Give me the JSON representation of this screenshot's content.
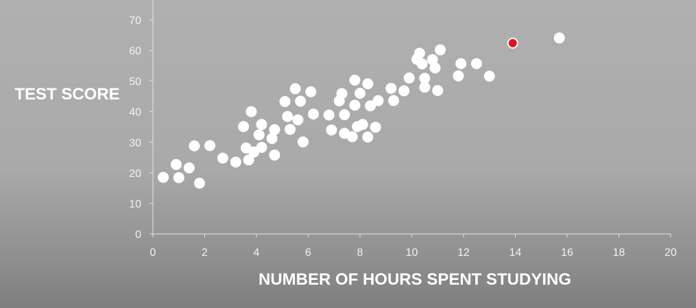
{
  "chart_data": {
    "type": "scatter",
    "title": "",
    "xlabel": "NUMBER OF HOURS SPENT STUDYING",
    "ylabel": "TEST SCORE",
    "xlim": [
      0,
      20
    ],
    "ylim": [
      0,
      70
    ],
    "x_ticks": [
      0,
      2,
      4,
      6,
      8,
      10,
      12,
      14,
      16,
      18,
      20
    ],
    "y_ticks": [
      0,
      10,
      20,
      30,
      40,
      50,
      60,
      70
    ],
    "grid": false,
    "colors": {
      "points": "#ffffff",
      "highlight": "#e8111a",
      "highlight_ring": "#ffffff",
      "axis": "#e6e6e6",
      "tick_text": "#f2f2f2",
      "title_text": "#ffffff"
    },
    "series": [
      {
        "points": [
          [
            0.4,
            18.5
          ],
          [
            0.9,
            22.7
          ],
          [
            1.0,
            18.4
          ],
          [
            1.4,
            21.6
          ],
          [
            1.6,
            28.8
          ],
          [
            1.8,
            16.6
          ],
          [
            2.2,
            28.9
          ],
          [
            2.7,
            24.8
          ],
          [
            3.2,
            23.5
          ],
          [
            3.5,
            35.1
          ],
          [
            3.6,
            28.1
          ],
          [
            3.7,
            24.2
          ],
          [
            3.8,
            40.0
          ],
          [
            3.9,
            26.8
          ],
          [
            4.1,
            32.4
          ],
          [
            4.2,
            28.3
          ],
          [
            4.2,
            35.8
          ],
          [
            4.6,
            31.2
          ],
          [
            4.7,
            25.8
          ],
          [
            4.7,
            34.1
          ],
          [
            5.1,
            43.3
          ],
          [
            5.2,
            38.4
          ],
          [
            5.3,
            34.2
          ],
          [
            5.5,
            47.5
          ],
          [
            5.6,
            37.3
          ],
          [
            5.7,
            43.4
          ],
          [
            5.8,
            30.1
          ],
          [
            6.1,
            46.5
          ],
          [
            6.2,
            39.2
          ],
          [
            6.8,
            38.9
          ],
          [
            6.9,
            34.0
          ],
          [
            7.2,
            43.5
          ],
          [
            7.3,
            45.9
          ],
          [
            7.4,
            39.0
          ],
          [
            7.4,
            32.9
          ],
          [
            7.7,
            31.8
          ],
          [
            7.8,
            42.1
          ],
          [
            7.8,
            50.3
          ],
          [
            7.9,
            35.1
          ],
          [
            8.0,
            46.0
          ],
          [
            8.1,
            35.8
          ],
          [
            8.3,
            49.1
          ],
          [
            8.3,
            31.7
          ],
          [
            8.4,
            41.9
          ],
          [
            8.6,
            34.9
          ],
          [
            8.7,
            43.6
          ],
          [
            9.2,
            47.6
          ],
          [
            9.3,
            43.6
          ],
          [
            9.7,
            46.8
          ],
          [
            9.9,
            51.0
          ],
          [
            10.2,
            57.1
          ],
          [
            10.3,
            59.1
          ],
          [
            10.4,
            55.6
          ],
          [
            10.5,
            48.0
          ],
          [
            10.5,
            50.9
          ],
          [
            10.8,
            57.0
          ],
          [
            10.9,
            54.3
          ],
          [
            11.0,
            46.9
          ],
          [
            11.1,
            60.2
          ],
          [
            11.8,
            51.7
          ],
          [
            11.9,
            55.7
          ],
          [
            12.5,
            55.7
          ],
          [
            13.0,
            51.6
          ],
          [
            15.7,
            64.1
          ]
        ]
      },
      {
        "points": [
          [
            13.9,
            62.4
          ]
        ]
      }
    ]
  }
}
